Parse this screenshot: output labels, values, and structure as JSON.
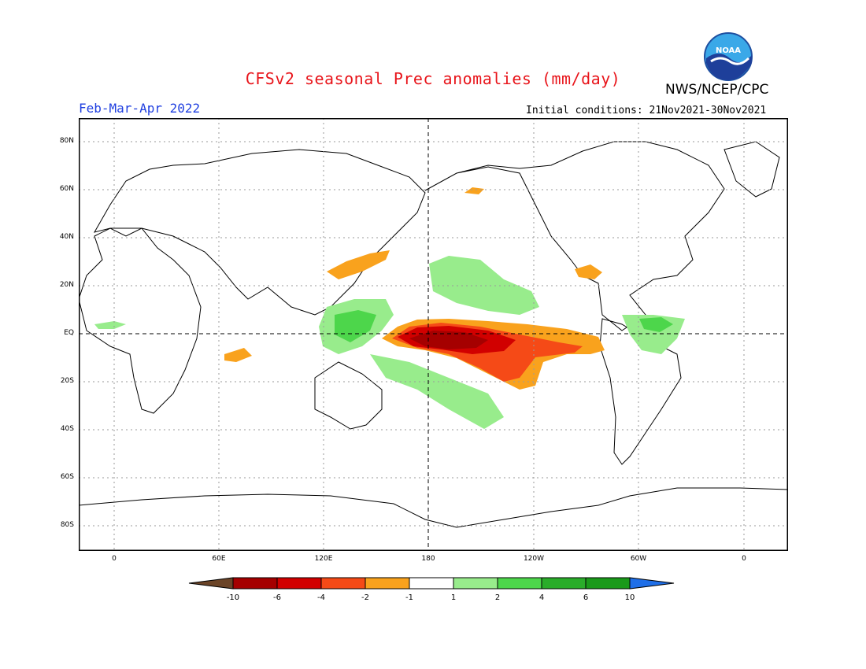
{
  "title": "CFSv2 seasonal Prec anomalies (mm/day)",
  "agency": "NWS/NCEP/CPC",
  "logo_text": "NOAA",
  "period": "Feb-Mar-Apr 2022",
  "initial_conditions": "Initial conditions: 21Nov2021-30Nov2021",
  "lat_labels": [
    "80N",
    "60N",
    "40N",
    "20N",
    "EQ",
    "20S",
    "40S",
    "60S",
    "80S"
  ],
  "lon_labels": [
    "0",
    "60E",
    "120E",
    "180",
    "120W",
    "60W",
    "0"
  ],
  "legend": {
    "labels": [
      "-10",
      "-6",
      "-4",
      "-2",
      "-1",
      "1",
      "2",
      "4",
      "6",
      "10"
    ],
    "colors": [
      "#6b4427",
      "#a50000",
      "#d10000",
      "#f54a17",
      "#f9a21d",
      "#ffffff",
      "#98ec8c",
      "#4dd64b",
      "#2aad2a",
      "#1a9a1a",
      "#1f6fe8"
    ]
  },
  "anomaly_colors": {
    "dry_extreme": "#a50000",
    "dry_strong": "#d10000",
    "dry_mid": "#f54a17",
    "dry_weak": "#f9a21d",
    "wet_weak": "#98ec8c",
    "wet_mid": "#4dd64b",
    "wet_strong": "#2aad2a"
  }
}
